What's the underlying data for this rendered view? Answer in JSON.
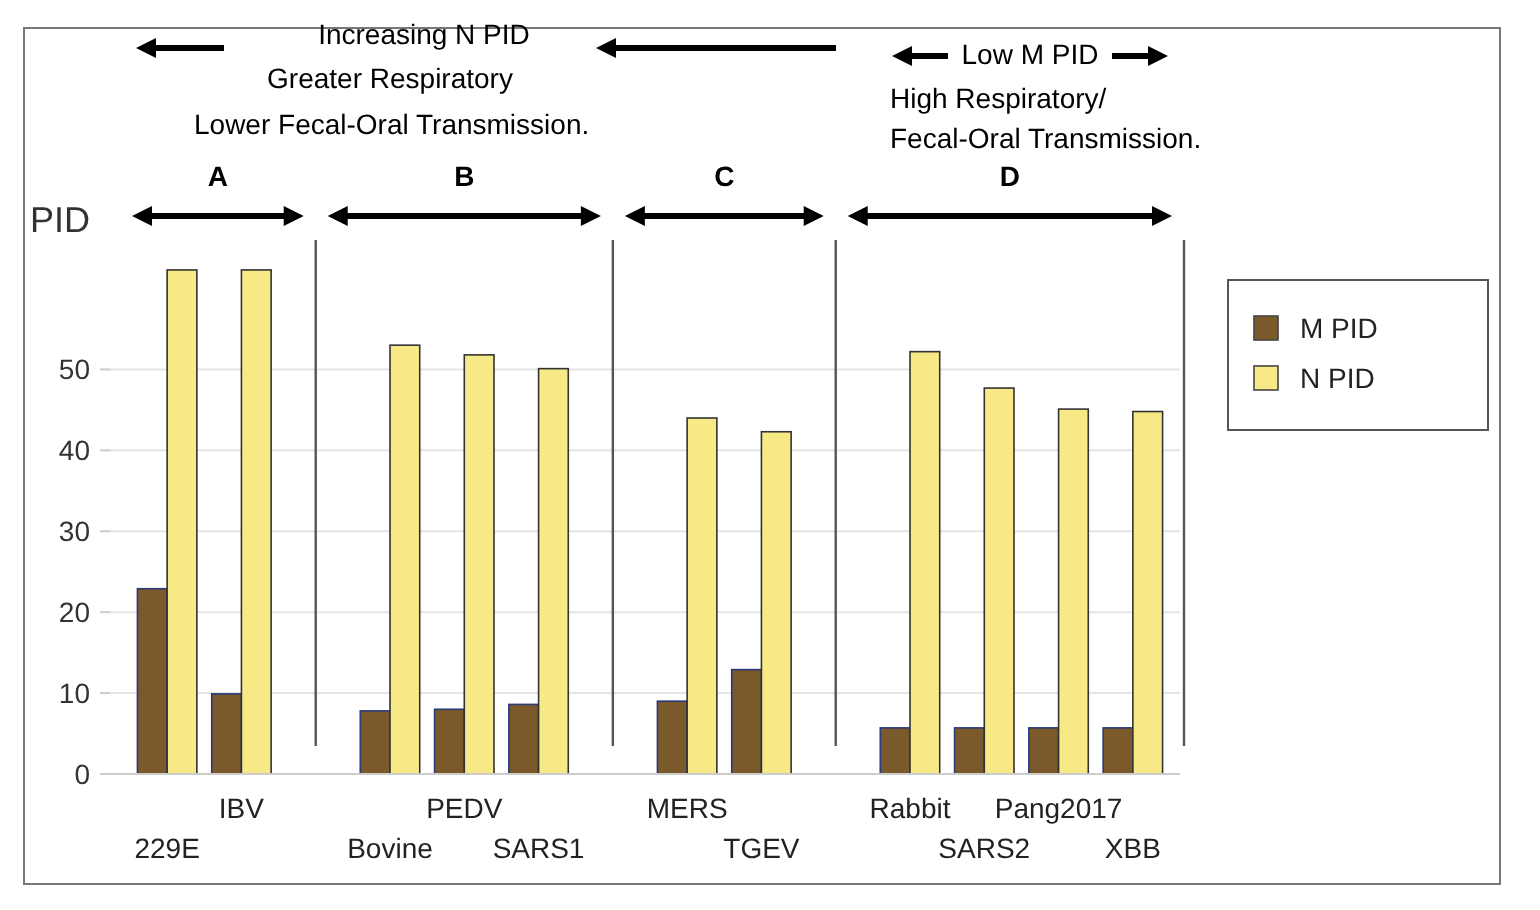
{
  "chart_data": {
    "type": "bar",
    "ylabel": "PID",
    "categories": [
      "229E",
      "IBV",
      null,
      "Bovine",
      "PEDV",
      "SARS1",
      null,
      "MERS",
      "TGEV",
      null,
      "Rabbit",
      "SARS2",
      "Pang2017",
      "XBB"
    ],
    "series": [
      {
        "name": "M PID",
        "color": "#7a5a2a",
        "values": [
          22.9,
          9.9,
          null,
          7.8,
          8.0,
          8.6,
          null,
          9.0,
          12.9,
          null,
          5.7,
          5.7,
          5.7,
          5.7
        ]
      },
      {
        "name": "N PID",
        "color": "#f7ea86",
        "values": [
          62.3,
          62.3,
          null,
          53.0,
          51.8,
          50.1,
          null,
          44.0,
          42.3,
          null,
          52.2,
          47.7,
          45.1,
          44.8
        ]
      }
    ],
    "ylim": [
      0,
      66
    ],
    "yticks": [
      0,
      10,
      20,
      30,
      40,
      50
    ],
    "grid": "y",
    "legend": "right",
    "annotations": [
      "Increasing N PID",
      "Greater Respiratory",
      "Lower Fecal-Oral Transmission.",
      "Low M PID",
      "High Respiratory/",
      "Fecal-Oral Transmission.",
      "A",
      "B",
      "C",
      "D"
    ]
  }
}
